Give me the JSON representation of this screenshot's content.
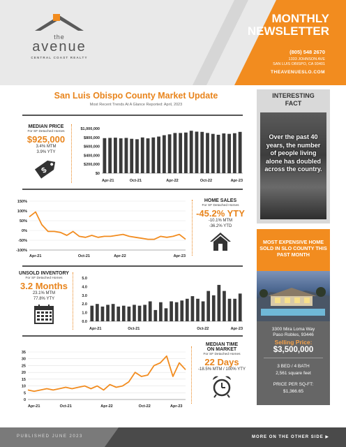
{
  "header": {
    "logo_the": "the",
    "logo_word": "avenue",
    "logo_tag": "CENTRAL COAST REALTY",
    "title_line1": "MONTHLY",
    "title_line2": "NEWSLETTER",
    "phone": "(805) 548 2670",
    "address_line1": "1333 JOHNSON AVE",
    "address_line2": "SAN LUIS OBISPO, CA 93401",
    "website": "THEAVENUESLO.COM"
  },
  "main": {
    "title": "San Luis Obispo County Market Update",
    "subtitle": "Most Recent Trends At A Glance Reported:  April, 2023"
  },
  "median_price": {
    "label": "MEDIAN PRICE",
    "sub": "For SF Detached Homes",
    "value": "$925,000",
    "mtm": "3.4% MTM",
    "ytd": "3.9% YTY",
    "icon": "price-tag-icon"
  },
  "home_sales": {
    "label": "HOME SALES",
    "sub": "For SF Detached Homes",
    "value": "-45.2% YTY",
    "mtm": "-10.1% MTM",
    "ytd": "-36.2% YTD",
    "icon": "house-icon"
  },
  "unsold": {
    "label": "UNSOLD INVENTORY",
    "sub": "For SF Detached Homes",
    "value": "3.2 Months",
    "mtm": "23.1% MTM",
    "ytd": "77.8% YTY",
    "icon": "calendar-icon"
  },
  "dom": {
    "label_line1": "MEDIAN TIME",
    "label_line2": "ON MARKET",
    "sub": "For SF Detached Homes",
    "value": "22 Days",
    "mtm": "-18.5% MTM / 100% YTY",
    "icon": "alarm-clock-icon"
  },
  "fact": {
    "title_line1": "INTERESTING",
    "title_line2": "FACT",
    "text": "Over the past 40 years, the number of people living alone has doubled across the country."
  },
  "sold": {
    "head": "MOST EXPENSIVE HOME SOLD IN SLO COUNTY THIS PAST MONTH",
    "address_line1": "3300 Mira Loma Way",
    "address_line2": "Paso Robles, 93446",
    "price_label": "Selling Price:",
    "price": "$3,500,000",
    "beds": "3 BED / 4 BATH",
    "sqft": "2,561 square feet",
    "pps_label": "PRICE PER SQ-FT:",
    "pps": "$1,366.65"
  },
  "footer": {
    "left": "PUBLISHED JUNE 2023",
    "right": "MORE ON THE OTHER SIDE ▶"
  },
  "colors": {
    "accent": "#f28c1f",
    "bar": "#3a3a3a"
  },
  "chart_data": [
    {
      "type": "bar",
      "name_hint": "median price",
      "x_ticks": [
        "Apr-21",
        "Oct-21",
        "Apr-22",
        "Oct-22",
        "Apr-23"
      ],
      "y_ticks": [
        "$1,000,000",
        "$800,000",
        "$600,000",
        "$400,000",
        "$200,000",
        "$0"
      ],
      "ylim": [
        0,
        1000000
      ],
      "values": [
        785000,
        790000,
        795000,
        780000,
        790000,
        770000,
        760000,
        800000,
        780000,
        800000,
        820000,
        850000,
        870000,
        900000,
        900000,
        910000,
        950000,
        930000,
        925000,
        900000,
        880000,
        860000,
        890000,
        880000,
        895000,
        925000
      ]
    },
    {
      "type": "line",
      "name_hint": "home sales yoy",
      "x_ticks": [
        "Apr-21",
        "Oct-21",
        "Apr-22",
        "Apr-23"
      ],
      "y_ticks": [
        "150%",
        "100%",
        "50%",
        "0%",
        "-50%",
        "-100%"
      ],
      "ylim": [
        -100,
        150
      ],
      "values": [
        70,
        95,
        30,
        -5,
        -5,
        -10,
        -25,
        -5,
        -30,
        -35,
        -25,
        -35,
        -30,
        -30,
        -25,
        -20,
        -30,
        -35,
        -40,
        -45,
        -45,
        -30,
        -35,
        -30,
        -20,
        -45
      ]
    },
    {
      "type": "bar",
      "name_hint": "unsold inventory",
      "x_ticks": [
        "Apr-21",
        "Oct-21",
        "Oct-22",
        "Apr-23"
      ],
      "y_ticks": [
        "5.0",
        "4.0",
        "3.0",
        "2.0",
        "1.0",
        "0.0"
      ],
      "ylim": [
        0,
        5
      ],
      "values": [
        1.8,
        2.0,
        1.7,
        1.9,
        2.0,
        1.7,
        1.8,
        1.7,
        1.9,
        1.8,
        1.9,
        2.3,
        1.3,
        2.2,
        1.5,
        2.3,
        2.2,
        2.4,
        2.6,
        2.9,
        2.6,
        2.3,
        3.5,
        3.0,
        4.2,
        3.5,
        2.6,
        2.6,
        3.2
      ]
    },
    {
      "type": "line",
      "name_hint": "median days on market",
      "x_ticks": [
        "Apr-21",
        "Oct-21",
        "Apr-22",
        "Oct-22",
        "Apr-23"
      ],
      "y_ticks": [
        "35",
        "30",
        "25",
        "20",
        "15",
        "10",
        "5",
        "0"
      ],
      "ylim": [
        0,
        35
      ],
      "values": [
        7,
        6,
        7,
        8,
        7,
        8,
        9,
        8,
        9,
        10,
        8,
        10,
        7,
        11,
        9,
        10,
        13,
        20,
        17,
        18,
        25,
        27,
        32,
        17,
        27,
        22
      ]
    }
  ]
}
